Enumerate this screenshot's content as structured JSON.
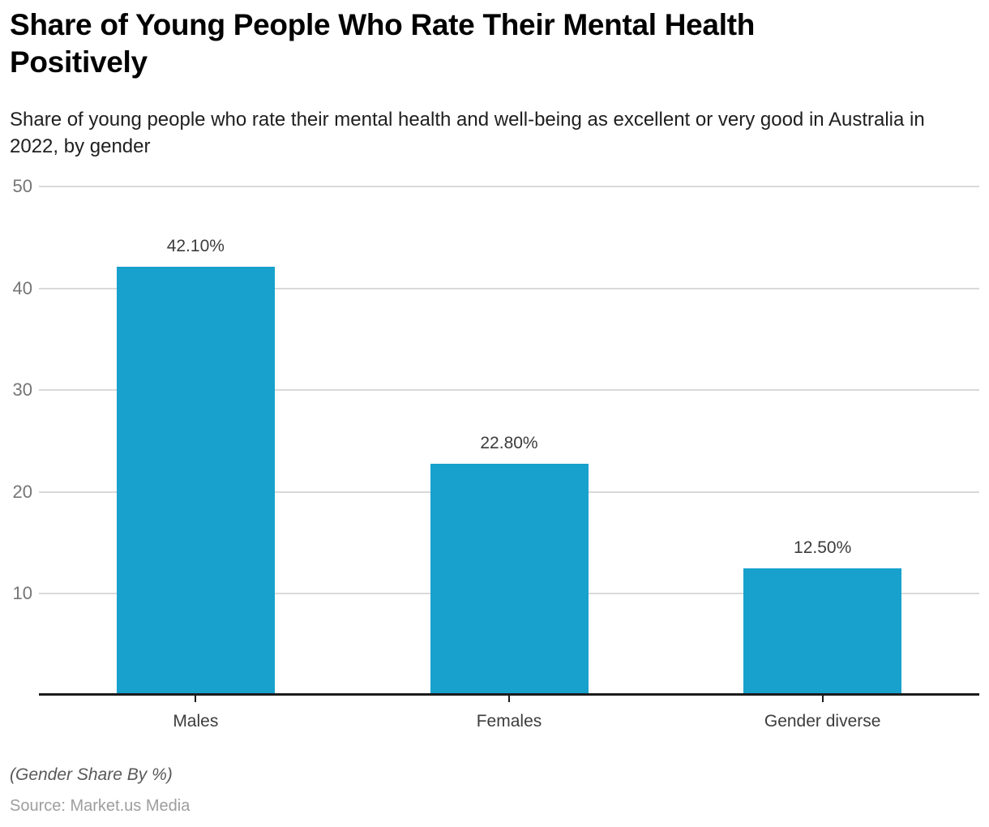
{
  "header": {
    "title": "Share of Young People Who Rate Their Mental Health Positively",
    "subtitle": "Share of young people who rate their mental health and well-being as excellent or very good in Australia in 2022, by gender"
  },
  "footer": {
    "footnote": "(Gender Share By %)",
    "source": "Source: Market.us Media"
  },
  "colors": {
    "bar": "#18a1cd",
    "gridline": "#d9d9d9",
    "axis": "#1c1c1c",
    "ytick_label": "#757575",
    "value_label": "#3c3c3c",
    "category_label": "#3c3c3c",
    "title": "#000000",
    "subtitle": "#1f1f1f",
    "footnote": "#595959",
    "source": "#9e9e9e"
  },
  "chart_data": {
    "type": "bar",
    "title": "Share of Young People Who Rate Their Mental Health Positively",
    "subtitle": "Share of young people who rate their mental health and well-being as excellent or very good in Australia in 2022, by gender",
    "categories": [
      "Males",
      "Females",
      "Gender diverse"
    ],
    "values": [
      42.1,
      22.8,
      12.5
    ],
    "value_labels": [
      "42.10%",
      "22.80%",
      "12.50%"
    ],
    "xlabel": "",
    "ylabel": "",
    "ylim": [
      0,
      50
    ],
    "yticks": [
      10,
      20,
      30,
      40,
      50
    ],
    "grid": true,
    "legend": "none",
    "bar_color": "#18a1cd",
    "unit_note": "(Gender Share By %)",
    "source": "Source: Market.us Media"
  }
}
